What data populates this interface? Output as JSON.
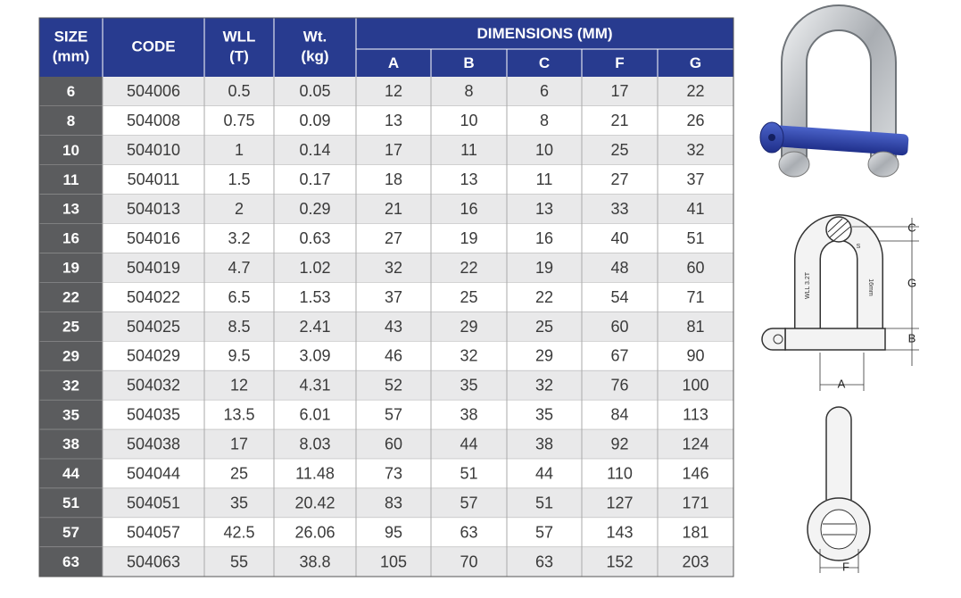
{
  "table": {
    "header": [
      {
        "lines": [
          "SIZE",
          "(mm)"
        ]
      },
      {
        "lines": [
          "CODE"
        ]
      },
      {
        "lines": [
          "WLL",
          "(T)"
        ]
      },
      {
        "lines": [
          "Wt.",
          "(kg)"
        ]
      }
    ],
    "dimensions_label": "DIMENSIONS (MM)",
    "dimension_columns": [
      "A",
      "B",
      "C",
      "F",
      "G"
    ],
    "rows": [
      [
        "6",
        "504006",
        "0.5",
        "0.05",
        "12",
        "8",
        "6",
        "17",
        "22"
      ],
      [
        "8",
        "504008",
        "0.75",
        "0.09",
        "13",
        "10",
        "8",
        "21",
        "26"
      ],
      [
        "10",
        "504010",
        "1",
        "0.14",
        "17",
        "11",
        "10",
        "25",
        "32"
      ],
      [
        "11",
        "504011",
        "1.5",
        "0.17",
        "18",
        "13",
        "11",
        "27",
        "37"
      ],
      [
        "13",
        "504013",
        "2",
        "0.29",
        "21",
        "16",
        "13",
        "33",
        "41"
      ],
      [
        "16",
        "504016",
        "3.2",
        "0.63",
        "27",
        "19",
        "16",
        "40",
        "51"
      ],
      [
        "19",
        "504019",
        "4.7",
        "1.02",
        "32",
        "22",
        "19",
        "48",
        "60"
      ],
      [
        "22",
        "504022",
        "6.5",
        "1.53",
        "37",
        "25",
        "22",
        "54",
        "71"
      ],
      [
        "25",
        "504025",
        "8.5",
        "2.41",
        "43",
        "29",
        "25",
        "60",
        "81"
      ],
      [
        "29",
        "504029",
        "9.5",
        "3.09",
        "46",
        "32",
        "29",
        "67",
        "90"
      ],
      [
        "32",
        "504032",
        "12",
        "4.31",
        "52",
        "35",
        "32",
        "76",
        "100"
      ],
      [
        "35",
        "504035",
        "13.5",
        "6.01",
        "57",
        "38",
        "35",
        "84",
        "113"
      ],
      [
        "38",
        "504038",
        "17",
        "8.03",
        "60",
        "44",
        "38",
        "92",
        "124"
      ],
      [
        "44",
        "504044",
        "25",
        "11.48",
        "73",
        "51",
        "44",
        "110",
        "146"
      ],
      [
        "51",
        "504051",
        "35",
        "20.42",
        "83",
        "57",
        "51",
        "127",
        "171"
      ],
      [
        "57",
        "504057",
        "42.5",
        "26.06",
        "95",
        "63",
        "57",
        "143",
        "181"
      ],
      [
        "63",
        "504063",
        "55",
        "38.8",
        "105",
        "70",
        "63",
        "152",
        "203"
      ]
    ]
  },
  "diagram": {
    "front_labels": {
      "C": "C",
      "G": "G",
      "B": "B",
      "A": "A"
    },
    "side_label": "F",
    "markings": [
      "WLL 3.2T",
      "16mm",
      "S"
    ]
  }
}
